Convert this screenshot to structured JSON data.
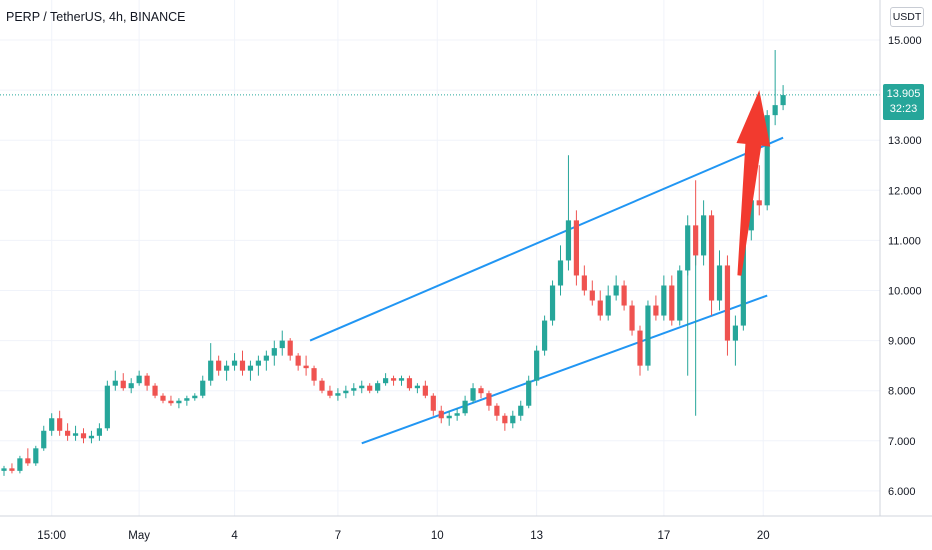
{
  "header": {
    "symbol_title": "PERP / TetherUS, 4h, BINANCE"
  },
  "price_axis": {
    "currency": "USDT"
  },
  "last_price": {
    "value": "13.905",
    "countdown": "32:23"
  },
  "colors": {
    "up": "#26a69a",
    "down": "#ef5350",
    "channel": "#2196f3",
    "arrow": "#f23a2f"
  },
  "chart_data": {
    "type": "candlestick",
    "ylim": [
      5.5,
      15.4
    ],
    "y_ticks": [
      "6.000",
      "7.000",
      "8.000",
      "9.000",
      "10.000",
      "11.000",
      "12.000",
      "13.000",
      "14.000",
      "15.000"
    ],
    "y_tick_values": [
      6,
      7,
      8,
      9,
      10,
      11,
      12,
      13,
      14,
      15
    ],
    "x_ticks": [
      "15:00",
      "May",
      "4",
      "7",
      "10",
      "13",
      "17",
      "20"
    ],
    "grid": true,
    "candles": [
      [
        6.4,
        6.5,
        6.3,
        6.45
      ],
      [
        6.45,
        6.55,
        6.35,
        6.4
      ],
      [
        6.4,
        6.7,
        6.35,
        6.65
      ],
      [
        6.65,
        6.85,
        6.5,
        6.55
      ],
      [
        6.55,
        6.9,
        6.5,
        6.85
      ],
      [
        6.85,
        7.3,
        6.8,
        7.2
      ],
      [
        7.2,
        7.55,
        7.1,
        7.45
      ],
      [
        7.45,
        7.6,
        7.1,
        7.2
      ],
      [
        7.2,
        7.35,
        7.0,
        7.1
      ],
      [
        7.1,
        7.3,
        7.0,
        7.15
      ],
      [
        7.15,
        7.25,
        6.95,
        7.05
      ],
      [
        7.05,
        7.2,
        6.95,
        7.1
      ],
      [
        7.1,
        7.35,
        7.0,
        7.25
      ],
      [
        7.25,
        8.2,
        7.2,
        8.1
      ],
      [
        8.1,
        8.4,
        8.0,
        8.2
      ],
      [
        8.2,
        8.35,
        8.0,
        8.05
      ],
      [
        8.05,
        8.25,
        7.95,
        8.15
      ],
      [
        8.15,
        8.4,
        8.1,
        8.3
      ],
      [
        8.3,
        8.35,
        8.0,
        8.1
      ],
      [
        8.1,
        8.15,
        7.85,
        7.9
      ],
      [
        7.9,
        7.95,
        7.75,
        7.8
      ],
      [
        7.8,
        7.9,
        7.7,
        7.75
      ],
      [
        7.75,
        7.85,
        7.65,
        7.8
      ],
      [
        7.8,
        7.9,
        7.7,
        7.85
      ],
      [
        7.85,
        7.95,
        7.8,
        7.9
      ],
      [
        7.9,
        8.3,
        7.85,
        8.2
      ],
      [
        8.2,
        8.95,
        8.1,
        8.6
      ],
      [
        8.6,
        8.7,
        8.3,
        8.4
      ],
      [
        8.4,
        8.6,
        8.2,
        8.5
      ],
      [
        8.5,
        8.75,
        8.4,
        8.6
      ],
      [
        8.6,
        8.8,
        8.3,
        8.4
      ],
      [
        8.4,
        8.6,
        8.2,
        8.5
      ],
      [
        8.5,
        8.7,
        8.3,
        8.6
      ],
      [
        8.6,
        8.8,
        8.4,
        8.7
      ],
      [
        8.7,
        9.0,
        8.5,
        8.85
      ],
      [
        8.85,
        9.2,
        8.7,
        9.0
      ],
      [
        9.0,
        9.05,
        8.6,
        8.7
      ],
      [
        8.7,
        8.75,
        8.4,
        8.5
      ],
      [
        8.5,
        8.7,
        8.3,
        8.45
      ],
      [
        8.45,
        8.5,
        8.1,
        8.2
      ],
      [
        8.2,
        8.25,
        7.95,
        8.0
      ],
      [
        8.0,
        8.1,
        7.85,
        7.9
      ],
      [
        7.9,
        8.05,
        7.8,
        7.95
      ],
      [
        7.95,
        8.1,
        7.85,
        8.0
      ],
      [
        8.0,
        8.15,
        7.9,
        8.05
      ],
      [
        8.05,
        8.2,
        7.95,
        8.1
      ],
      [
        8.1,
        8.15,
        7.95,
        8.0
      ],
      [
        8.0,
        8.2,
        7.95,
        8.15
      ],
      [
        8.15,
        8.35,
        8.1,
        8.25
      ],
      [
        8.25,
        8.3,
        8.1,
        8.2
      ],
      [
        8.2,
        8.3,
        8.1,
        8.25
      ],
      [
        8.25,
        8.3,
        8.0,
        8.05
      ],
      [
        8.05,
        8.15,
        7.95,
        8.1
      ],
      [
        8.1,
        8.2,
        7.85,
        7.9
      ],
      [
        7.9,
        7.95,
        7.5,
        7.6
      ],
      [
        7.6,
        7.7,
        7.35,
        7.45
      ],
      [
        7.45,
        7.6,
        7.3,
        7.5
      ],
      [
        7.5,
        7.65,
        7.4,
        7.55
      ],
      [
        7.55,
        7.9,
        7.5,
        7.8
      ],
      [
        7.8,
        8.15,
        7.75,
        8.05
      ],
      [
        8.05,
        8.1,
        7.85,
        7.95
      ],
      [
        7.95,
        8.0,
        7.6,
        7.7
      ],
      [
        7.7,
        7.75,
        7.4,
        7.5
      ],
      [
        7.5,
        7.55,
        7.2,
        7.35
      ],
      [
        7.35,
        7.6,
        7.25,
        7.5
      ],
      [
        7.5,
        7.8,
        7.4,
        7.7
      ],
      [
        7.7,
        8.3,
        7.65,
        8.2
      ],
      [
        8.2,
        8.9,
        8.1,
        8.8
      ],
      [
        8.8,
        9.5,
        8.7,
        9.4
      ],
      [
        9.4,
        10.2,
        9.3,
        10.1
      ],
      [
        10.1,
        10.9,
        9.9,
        10.6
      ],
      [
        10.6,
        12.7,
        10.4,
        11.4
      ],
      [
        11.4,
        11.6,
        10.1,
        10.3
      ],
      [
        10.3,
        10.5,
        9.9,
        10.0
      ],
      [
        10.0,
        10.2,
        9.7,
        9.8
      ],
      [
        9.8,
        10.0,
        9.4,
        9.5
      ],
      [
        9.5,
        10.1,
        9.4,
        9.9
      ],
      [
        9.9,
        10.3,
        9.8,
        10.1
      ],
      [
        10.1,
        10.2,
        9.6,
        9.7
      ],
      [
        9.7,
        9.8,
        9.1,
        9.2
      ],
      [
        9.2,
        9.3,
        8.3,
        8.5
      ],
      [
        8.5,
        9.8,
        8.4,
        9.7
      ],
      [
        9.7,
        9.9,
        9.4,
        9.5
      ],
      [
        9.5,
        10.3,
        9.4,
        10.1
      ],
      [
        10.1,
        10.3,
        9.3,
        9.4
      ],
      [
        9.4,
        10.5,
        9.3,
        10.4
      ],
      [
        10.4,
        11.5,
        10.3,
        11.3
      ],
      [
        11.3,
        12.2,
        10.5,
        10.7
      ],
      [
        10.7,
        11.8,
        10.5,
        11.5
      ],
      [
        11.5,
        11.6,
        9.5,
        9.8
      ],
      [
        9.8,
        10.8,
        9.6,
        10.5
      ],
      [
        10.5,
        10.7,
        8.7,
        9.0
      ],
      [
        9.0,
        9.5,
        8.5,
        9.3
      ],
      [
        9.3,
        11.5,
        9.2,
        11.2
      ],
      [
        11.2,
        12.1,
        11.0,
        11.8
      ],
      [
        11.8,
        12.5,
        11.5,
        11.7
      ],
      [
        11.7,
        13.6,
        11.6,
        13.5
      ],
      [
        13.5,
        14.8,
        13.3,
        13.7
      ],
      [
        13.7,
        14.1,
        13.6,
        13.9
      ]
    ],
    "down_wicks": [
      [
        87,
        7.5
      ],
      [
        86,
        8.3
      ]
    ],
    "channel": {
      "upper": [
        [
          38.5,
          9.0
        ],
        [
          98.0,
          13.05
        ]
      ],
      "lower": [
        [
          45.0,
          6.95
        ],
        [
          96.0,
          9.9
        ]
      ]
    },
    "arrow": {
      "from": [
        92.5,
        10.3
      ],
      "to": [
        95.0,
        14.0
      ]
    },
    "last_price_line": 13.905
  }
}
